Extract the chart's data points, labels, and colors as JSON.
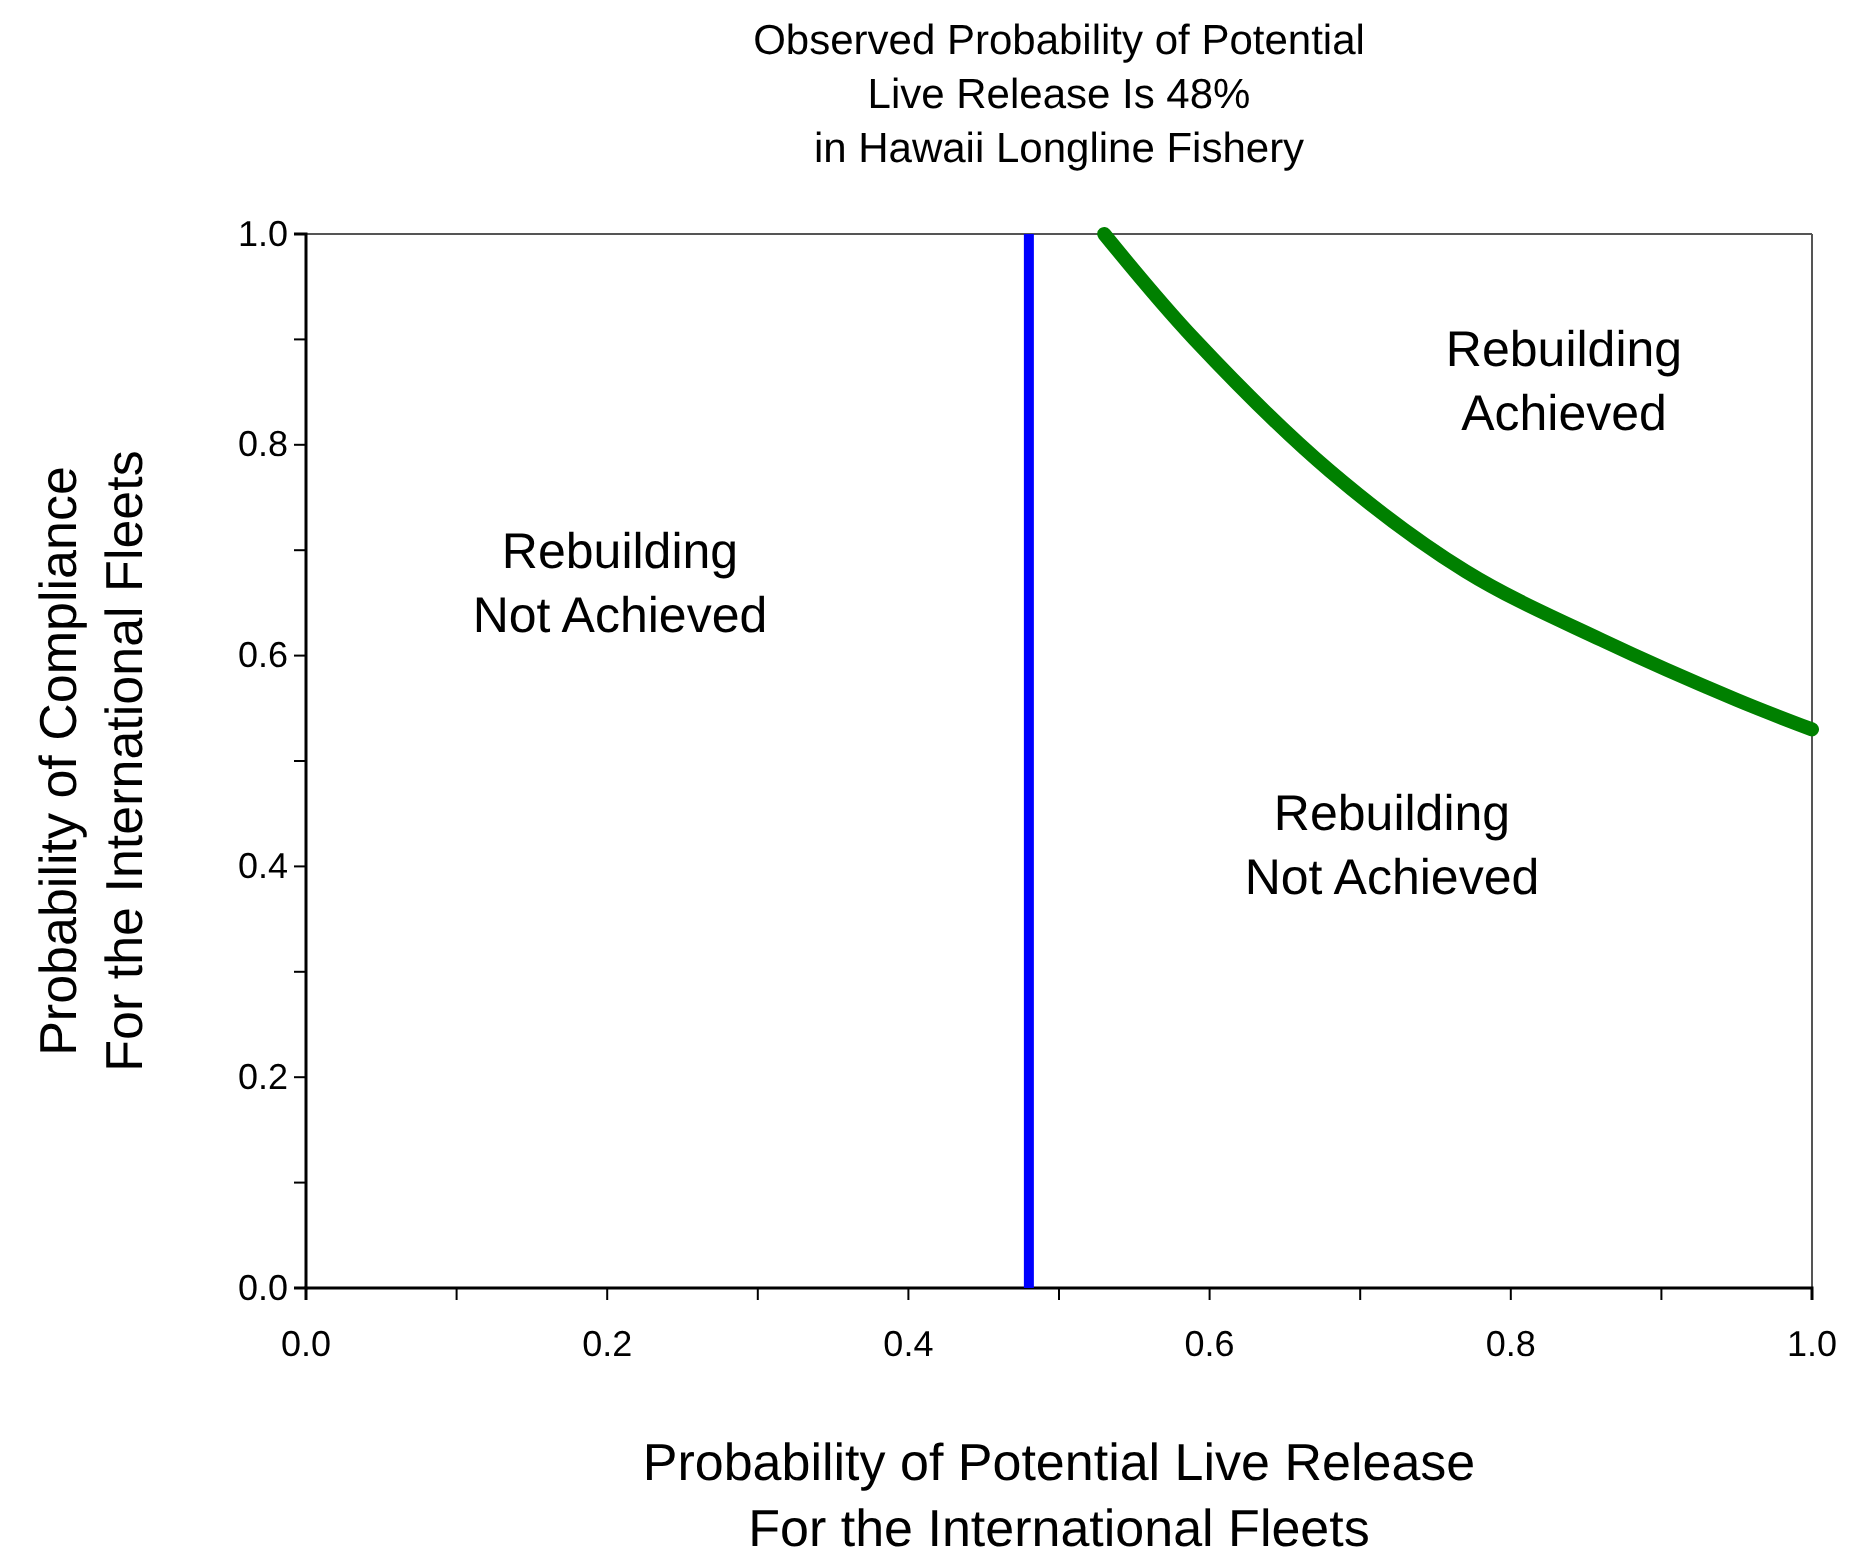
{
  "chart_data": {
    "type": "line",
    "title": "Observed Probability of Potential\nLive Release Is 48%\nin Hawaii Longline Fishery",
    "xlabel": "Probability of Potential Live Release\nFor the International Fleets",
    "ylabel": "Probability of Compliance\nFor the International Fleets",
    "x": [
      0.53,
      0.59,
      0.68,
      0.77,
      0.86,
      0.95,
      1.0
    ],
    "series": [
      {
        "color": "#008000",
        "values": [
          1.0,
          0.9,
          0.775,
          0.68,
          0.615,
          0.558,
          0.53
        ]
      }
    ],
    "xlim": [
      0,
      1
    ],
    "ylim": [
      0,
      1
    ],
    "xticks": [
      {
        "value": 0,
        "label": "0.0"
      },
      {
        "value": 0.1,
        "label": null
      },
      {
        "value": 0.2,
        "label": "0.2"
      },
      {
        "value": 0.3,
        "label": null
      },
      {
        "value": 0.4,
        "label": "0.4"
      },
      {
        "value": 0.5,
        "label": null
      },
      {
        "value": 0.6,
        "label": "0.6"
      },
      {
        "value": 0.7,
        "label": null
      },
      {
        "value": 0.8,
        "label": "0.8"
      },
      {
        "value": 0.9,
        "label": null
      },
      {
        "value": 1,
        "label": "1.0"
      }
    ],
    "yticks": [
      {
        "value": 0,
        "label": "0.0"
      },
      {
        "value": 0.1,
        "label": null
      },
      {
        "value": 0.2,
        "label": "0.2"
      },
      {
        "value": 0.3,
        "label": null
      },
      {
        "value": 0.4,
        "label": "0.4"
      },
      {
        "value": 0.5,
        "label": null
      },
      {
        "value": 0.6,
        "label": "0.6"
      },
      {
        "value": 0.7,
        "label": null
      },
      {
        "value": 0.8,
        "label": "0.8"
      },
      {
        "value": 0.9,
        "label": null
      },
      {
        "value": 1,
        "label": "1.0"
      }
    ],
    "ref_lines": [
      {
        "axis": "x",
        "value": 0.48,
        "color": "#0000ff"
      }
    ],
    "annotations": [
      "Rebuilding\nNot Achieved",
      "Rebuilding\nAchieved",
      "Rebuilding\nNot Achieved"
    ],
    "grid": false,
    "marker": "none",
    "line_style": "solid"
  }
}
